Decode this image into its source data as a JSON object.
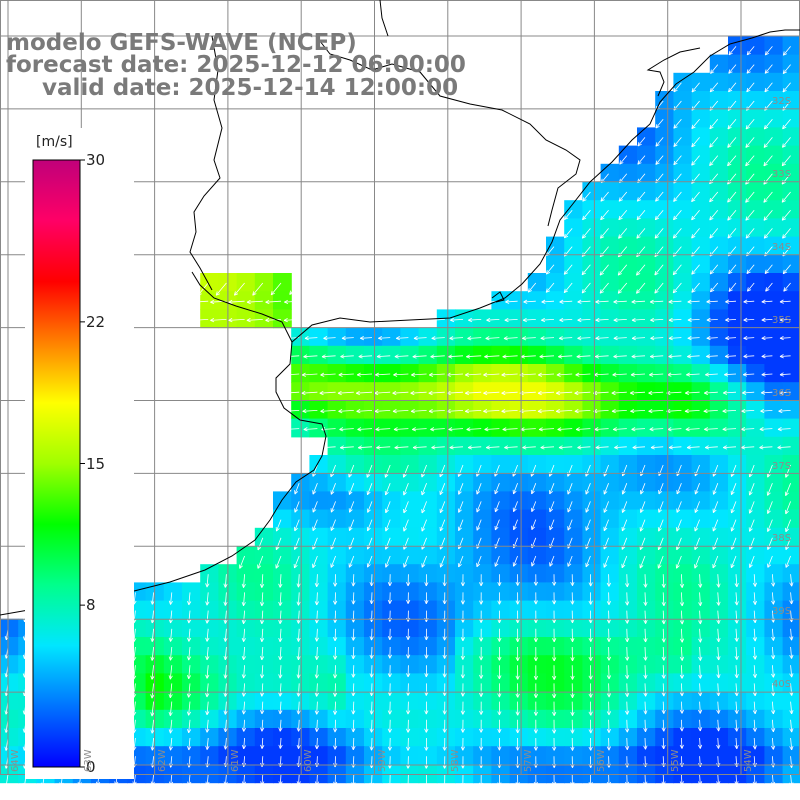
{
  "title": {
    "line1": "modelo GEFS-WAVE (NCEP)",
    "line2": "forecast date: 2025-12-12 06:00:00",
    "line3": "valid date: 2025-12-14 12:00:00"
  },
  "colorbar": {
    "unit": "[m/s]",
    "ticks": [
      {
        "value": 30,
        "label": "30"
      },
      {
        "value": 22,
        "label": "22"
      },
      {
        "value": 15,
        "label": "15"
      },
      {
        "value": 8,
        "label": "8"
      },
      {
        "value": 0,
        "label": "0"
      }
    ],
    "colors": [
      "#0000ff",
      "#0073ff",
      "#00e6ff",
      "#00ff8c",
      "#00ff00",
      "#a0ff00",
      "#ffff00",
      "#ff8000",
      "#ff0000",
      "#ff0066",
      "#c0007a"
    ],
    "min": 0,
    "max": 30
  },
  "lat_labels": [
    "32S",
    "33S",
    "34S",
    "35S",
    "36S",
    "37S",
    "38S",
    "39S",
    "40S"
  ],
  "lon_labels": [
    "64W",
    "63W",
    "62W",
    "61W",
    "60W",
    "59W",
    "58W",
    "57W",
    "56W",
    "55W",
    "54W"
  ],
  "map": {
    "grid": true,
    "land_color": "#ffffff",
    "gridline_color": "#888888",
    "coastline_color": "#000000",
    "vector_color": "#ffffff"
  }
}
